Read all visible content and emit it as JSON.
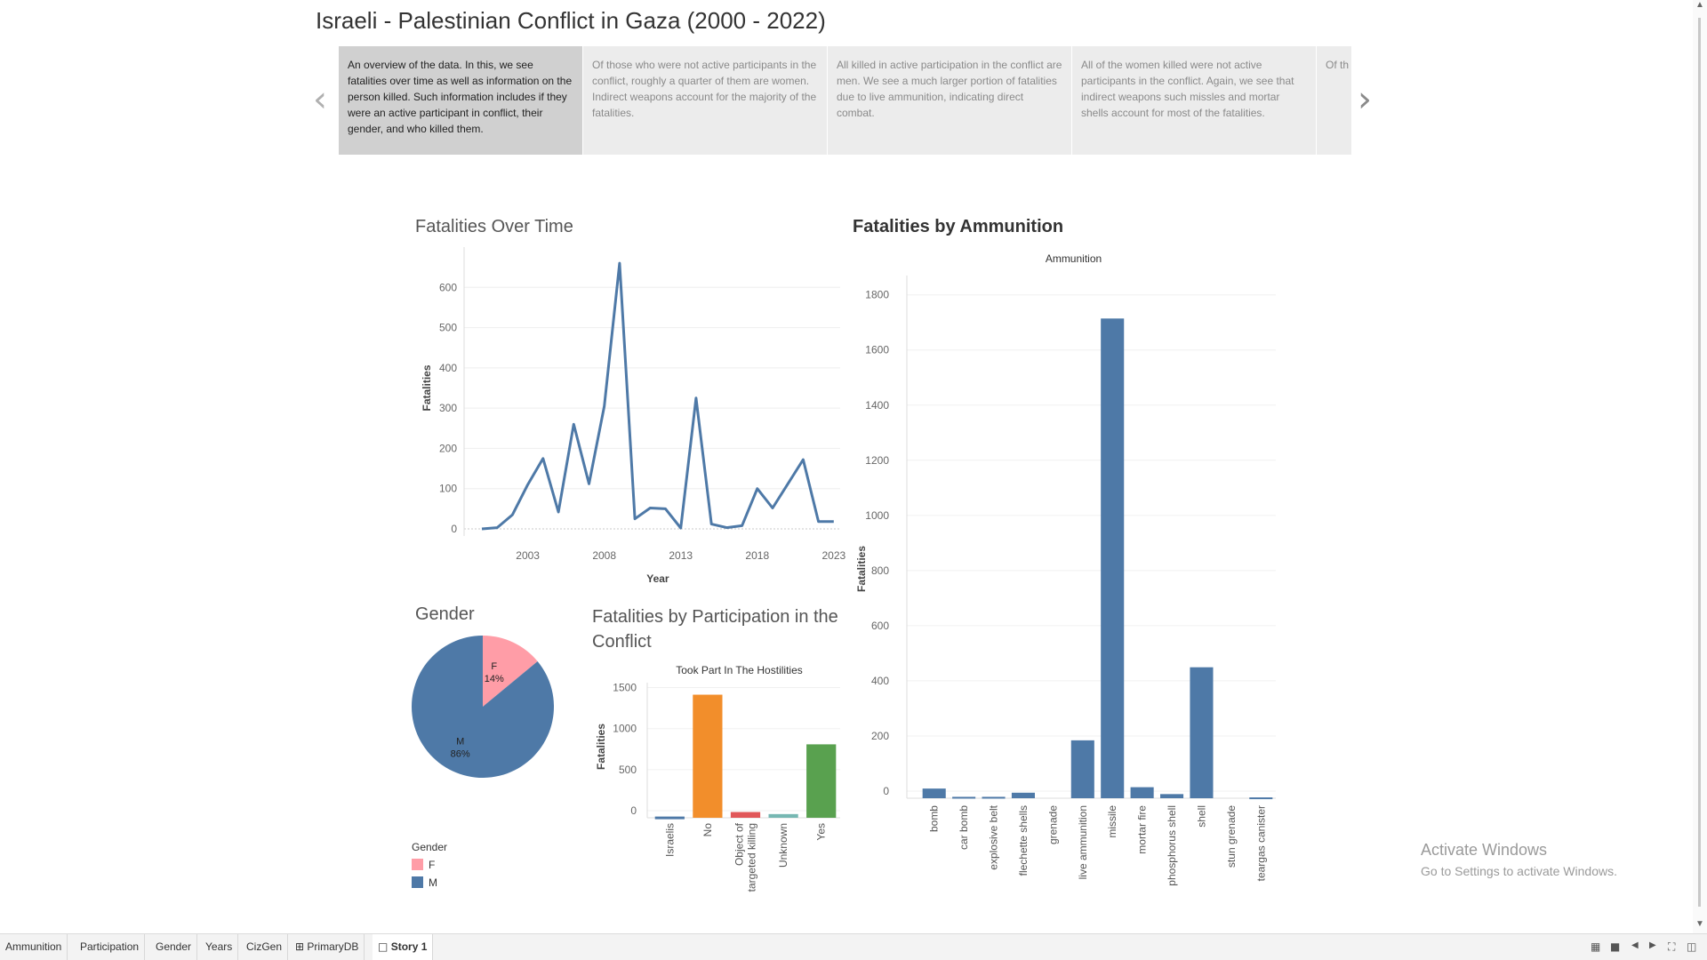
{
  "story": {
    "title": "Israeli - Palestinian Conflict in Gaza (2000 - 2022)",
    "captions": [
      "An overview of the data. In this, we see fatalities over time as well as information on the person killed. Such information includes if they were an active participant in conflict, their gender, and who killed them.",
      "Of those who were not active participants in the conflict, roughly a quarter of them are women. Indirect weapons account for the majority of the fatalities.",
      "All killed in active participation in the conflict are men. We see a much larger portion of fatalities due to live ammunition, indicating direct combat.",
      "All of the women killed were not active participants in the conflict. Again, we see that indirect weapons such missles and mortar shells account for most of the fatalities.",
      "Of th porti rudim"
    ],
    "prev_icon": "chevron-left-icon",
    "next_icon": "chevron-right-icon"
  },
  "worksheets": {
    "over_time_title": "Fatalities Over Time",
    "ammo_title": "Fatalities by Ammunition",
    "gender_title": "Gender",
    "participation_title": "Fatalities by Participation in the Conflict"
  },
  "chart_data": [
    {
      "id": "fatalities-over-time",
      "type": "line",
      "title": "Fatalities Over Time",
      "xlabel": "Year",
      "ylabel": "Fatalities",
      "x": [
        2000,
        2001,
        2002,
        2003,
        2004,
        2005,
        2006,
        2007,
        2008,
        2009,
        2010,
        2011,
        2012,
        2013,
        2014,
        2015,
        2016,
        2017,
        2018,
        2019,
        2020,
        2021,
        2022,
        2023
      ],
      "values": [
        0,
        3,
        35,
        110,
        175,
        42,
        260,
        112,
        305,
        660,
        25,
        52,
        50,
        2,
        325,
        12,
        3,
        8,
        100,
        52,
        112,
        172,
        18,
        18
      ],
      "xticks": [
        2003,
        2008,
        2013,
        2018,
        2023
      ],
      "yticks": [
        0,
        100,
        200,
        300,
        400,
        500,
        600
      ],
      "ylim": [
        0,
        700
      ],
      "color": "#4e79a7"
    },
    {
      "id": "fatalities-by-ammunition",
      "type": "bar",
      "title": "Fatalities by Ammunition",
      "header": "Ammunition",
      "ylabel": "Fatalities",
      "categories": [
        "bomb",
        "car bomb",
        "explosive belt",
        "flechette shells",
        "grenade",
        "live ammunition",
        "missile",
        "mortar fire",
        "phosphorus shell",
        "shell",
        "stun grenade",
        "teargas canister"
      ],
      "values": [
        35,
        5,
        5,
        20,
        0,
        210,
        1740,
        40,
        15,
        475,
        0,
        3
      ],
      "yticks": [
        0,
        200,
        400,
        600,
        800,
        1000,
        1200,
        1400,
        1600,
        1800
      ],
      "ylim": [
        0,
        1870
      ],
      "color": "#4e79a7"
    },
    {
      "id": "gender",
      "type": "pie",
      "title": "Gender",
      "slices": [
        {
          "label": "F",
          "pct": "14%",
          "value": 14,
          "color": "#ff9da7"
        },
        {
          "label": "M",
          "pct": "86%",
          "value": 86,
          "color": "#4e79a7"
        }
      ],
      "legend_title": "Gender",
      "legend": [
        {
          "label": "F",
          "color": "#ff9da7"
        },
        {
          "label": "M",
          "color": "#4e79a7"
        }
      ]
    },
    {
      "id": "fatalities-by-participation",
      "type": "bar",
      "title": "Fatalities by Participation in the Conflict",
      "header": "Took Part In The Hostilities",
      "ylabel": "Fatalities",
      "categories": [
        "Israelis",
        "No",
        "Object of targeted killing",
        "Unknown",
        "Yes"
      ],
      "tick_lines": [
        [
          "Israelis"
        ],
        [
          "No"
        ],
        [
          "Object of",
          "targeted killing"
        ],
        [
          "Unknown"
        ],
        [
          "Yes"
        ]
      ],
      "values": [
        15,
        1500,
        70,
        45,
        895
      ],
      "colors": [
        "#4e79a7",
        "#f28e2b",
        "#e15759",
        "#76b7b2",
        "#59a14f"
      ],
      "yticks": [
        0,
        500,
        1000,
        1500
      ],
      "ylim": [
        0,
        1560
      ]
    }
  ],
  "watermark": {
    "line1": "Activate Windows",
    "line2": "Go to Settings to activate Windows."
  },
  "tabs": [
    {
      "label": "Ammunition",
      "icon": ""
    },
    {
      "label": "Participation",
      "icon": ""
    },
    {
      "label": "Gender",
      "icon": ""
    },
    {
      "label": "Years",
      "icon": ""
    },
    {
      "label": "CizGen",
      "icon": ""
    },
    {
      "label": "PrimaryDB",
      "icon": "dashboard-icon"
    },
    {
      "label": "Story 1",
      "icon": "story-icon",
      "active": true
    }
  ],
  "toolbar_icons": [
    "grid-view-icon",
    "filmstrip-view-icon",
    "tab-prev-icon",
    "tab-next-icon",
    "fit-screen-icon",
    "presentation-icon"
  ]
}
